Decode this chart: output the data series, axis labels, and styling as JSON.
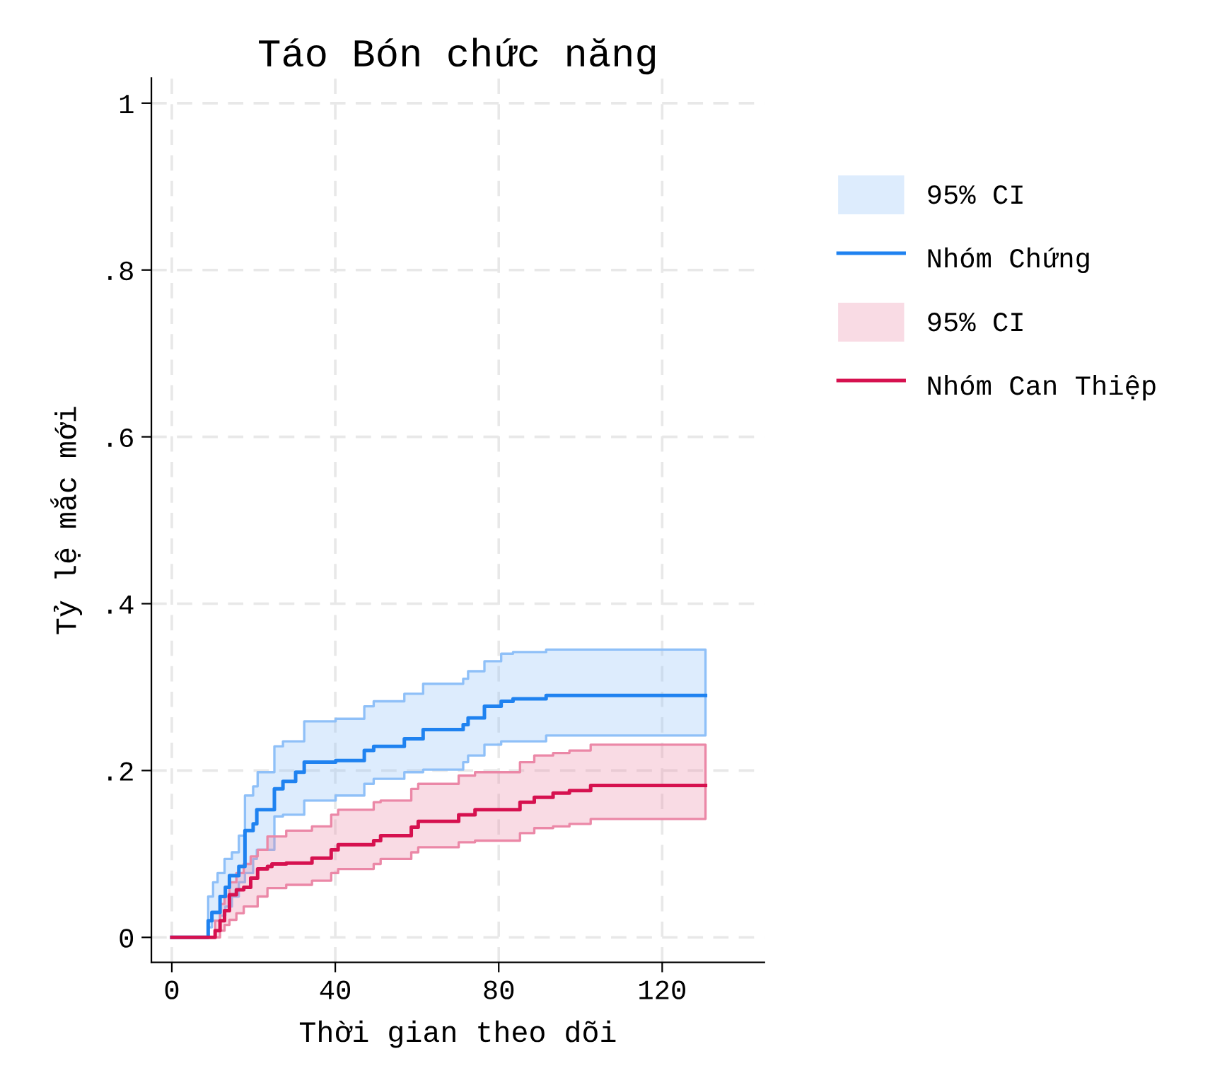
{
  "chart_data": {
    "type": "step",
    "title": "Táo Bón chức năng",
    "xlabel": "Thời gian theo dõi",
    "ylabel": "Tỷ lệ mắc mới",
    "xlim": [
      -5,
      145
    ],
    "xticks": [
      0,
      40,
      80,
      120
    ],
    "ylim": [
      -0.03,
      1.03
    ],
    "yticks": [
      {
        "value": 0,
        "label": "0"
      },
      {
        "value": 0.2,
        "label": ".2"
      },
      {
        "value": 0.4,
        "label": ".4"
      },
      {
        "value": 0.6,
        "label": ".6"
      },
      {
        "value": 0.8,
        "label": ".8"
      },
      {
        "value": 1,
        "label": "1"
      }
    ],
    "grid": true,
    "legend": "right",
    "annotations": [
      "95% CI",
      "95% CI"
    ],
    "series": [
      {
        "name": "Nhóm Chứng",
        "color": "#1f82f0",
        "x": [
          0,
          8.9,
          9.8,
          10.1,
          11.2,
          11.8,
          12.9,
          13.1,
          14.1,
          14.7,
          16.4,
          17.9,
          19.9,
          20.8,
          21.0,
          25.1,
          27.2,
          30.3,
          32.4,
          40.1,
          47.1,
          49.4,
          56.9,
          61.5,
          71.3,
          72.5,
          76.5,
          80.6,
          83.5,
          91.6,
          130.6
        ],
        "values": [
          0,
          0.02,
          0.03,
          0.03,
          0.03,
          0.049,
          0.049,
          0.06,
          0.074,
          0.074,
          0.085,
          0.128,
          0.136,
          0.153,
          0.153,
          0.178,
          0.187,
          0.198,
          0.21,
          0.212,
          0.224,
          0.229,
          0.238,
          0.249,
          0.255,
          0.263,
          0.277,
          0.283,
          0.286,
          0.29,
          0.29
        ],
        "upper": [
          null,
          0.049,
          0.049,
          0.066,
          0.077,
          0.077,
          0.094,
          0.094,
          0.094,
          0.102,
          0.122,
          0.17,
          0.181,
          0.181,
          0.198,
          0.229,
          0.235,
          0.235,
          0.259,
          0.262,
          0.277,
          0.283,
          0.292,
          0.304,
          0.31,
          0.319,
          0.331,
          0.34,
          0.342,
          0.345,
          0.345
        ],
        "lower": [
          null,
          0.012,
          0.02,
          0.02,
          0.02,
          0.026,
          0.026,
          0.037,
          0.037,
          0.049,
          0.066,
          0.077,
          0.094,
          0.105,
          0.105,
          0.145,
          0.147,
          0.147,
          0.164,
          0.17,
          0.184,
          0.19,
          0.198,
          0.201,
          0.21,
          0.218,
          0.231,
          0.235,
          0.235,
          0.242,
          0.242
        ]
      },
      {
        "name": "Nhóm Can Thiệp",
        "color": "#d6114f",
        "x": [
          0,
          10.6,
          11.8,
          12.9,
          14.1,
          15.8,
          17.6,
          19.3,
          21.0,
          23.4,
          24.5,
          28.0,
          34.3,
          39.0,
          40.7,
          49.4,
          51.1,
          58.6,
          60.3,
          70.2,
          74.2,
          85.2,
          88.7,
          93.3,
          97.3,
          102.5,
          130.6
        ],
        "values": [
          0,
          0.008,
          0.02,
          0.032,
          0.051,
          0.057,
          0.06,
          0.071,
          0.082,
          0.085,
          0.088,
          0.089,
          0.095,
          0.105,
          0.111,
          0.116,
          0.122,
          0.132,
          0.139,
          0.147,
          0.153,
          0.162,
          0.168,
          0.173,
          0.176,
          0.182,
          0.182
        ],
        "upper": [
          null,
          0.02,
          0.04,
          0.049,
          0.066,
          0.077,
          0.088,
          0.097,
          0.105,
          0.121,
          0.121,
          0.128,
          0.133,
          0.147,
          0.153,
          0.162,
          0.164,
          0.178,
          0.184,
          0.194,
          0.198,
          0.21,
          0.218,
          0.221,
          0.224,
          0.231,
          0.231
        ],
        "lower": [
          null,
          0,
          0.008,
          0.015,
          0.021,
          0.029,
          0.037,
          0.037,
          0.049,
          0.059,
          0.059,
          0.063,
          0.068,
          0.077,
          0.082,
          0.088,
          0.094,
          0.102,
          0.108,
          0.114,
          0.116,
          0.125,
          0.131,
          0.133,
          0.136,
          0.142,
          0.142
        ]
      }
    ]
  }
}
